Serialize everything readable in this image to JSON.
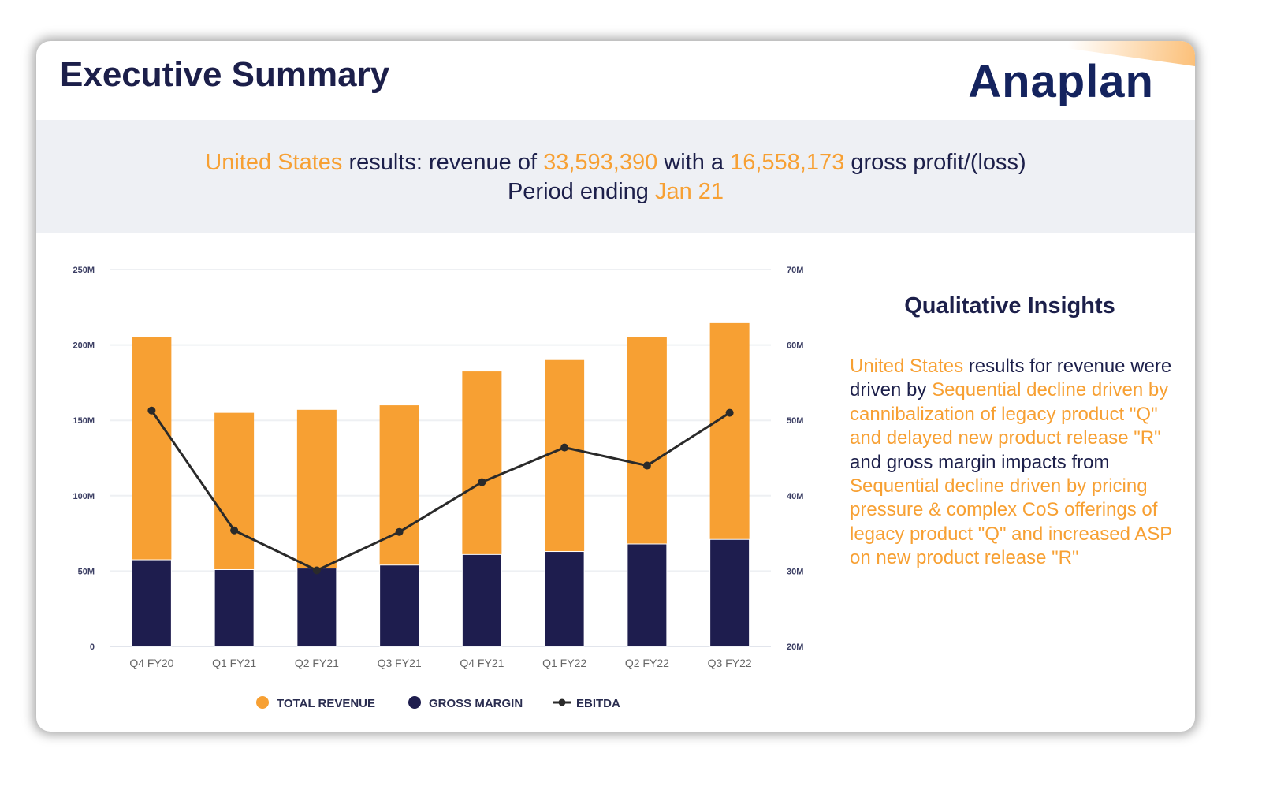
{
  "header": {
    "title": "Executive Summary",
    "logo": "Anaplan"
  },
  "summary": {
    "region": "United States",
    "t1": " results: revenue of ",
    "revenue": "33,593,390",
    "t2": " with a ",
    "gross_profit": "16,558,173",
    "t3": " gross profit/(loss)",
    "t4": "Period ending ",
    "period": "Jan 21"
  },
  "insights": {
    "title": "Qualitative Insights",
    "parts": [
      {
        "text": "United States",
        "hl": true
      },
      {
        "text": " results for revenue were driven by ",
        "hl": false
      },
      {
        "text": "Sequential decline driven by cannibalization of legacy product \"Q\" and delayed new product release \"R\"",
        "hl": true
      },
      {
        "text": " and gross margin impacts from ",
        "hl": false
      },
      {
        "text": "Sequential decline driven by pricing pressure & complex CoS offerings of legacy product \"Q\" and increased ASP on new product release \"R\"",
        "hl": true
      }
    ]
  },
  "colors": {
    "revenue": "#f7a033",
    "margin": "#1e1d4e",
    "ebitda": "#2a2a2a",
    "highlight": "#f7a033"
  },
  "chart_data": {
    "type": "bar",
    "categories": [
      "Q4 FY20",
      "Q1 FY21",
      "Q2 FY21",
      "Q3 FY21",
      "Q4 FY21",
      "Q1 FY22",
      "Q2 FY22",
      "Q3 FY22"
    ],
    "series": [
      {
        "name": "TOTAL REVENUE",
        "type": "bar",
        "axis": "left",
        "values": [
          205.5,
          155,
          157,
          160,
          182.5,
          190,
          205.5,
          214.5
        ]
      },
      {
        "name": "GROSS MARGIN",
        "type": "bar",
        "axis": "left",
        "values": [
          57.5,
          51,
          52,
          54,
          61,
          63,
          68,
          71
        ]
      },
      {
        "name": "EBITDA",
        "type": "line",
        "axis": "right",
        "values": [
          51.3,
          35.4,
          30.1,
          35.2,
          41.8,
          46.4,
          44,
          51
        ]
      }
    ],
    "unit": "M",
    "ylim_left": [
      0,
      250
    ],
    "yticks_left": [
      "0",
      "50M",
      "100M",
      "150M",
      "200M",
      "250M"
    ],
    "ylim_right": [
      20,
      70
    ],
    "yticks_right": [
      "20M",
      "30M",
      "40M",
      "50M",
      "60M",
      "70M"
    ],
    "grid": true,
    "legend": "bottom"
  }
}
